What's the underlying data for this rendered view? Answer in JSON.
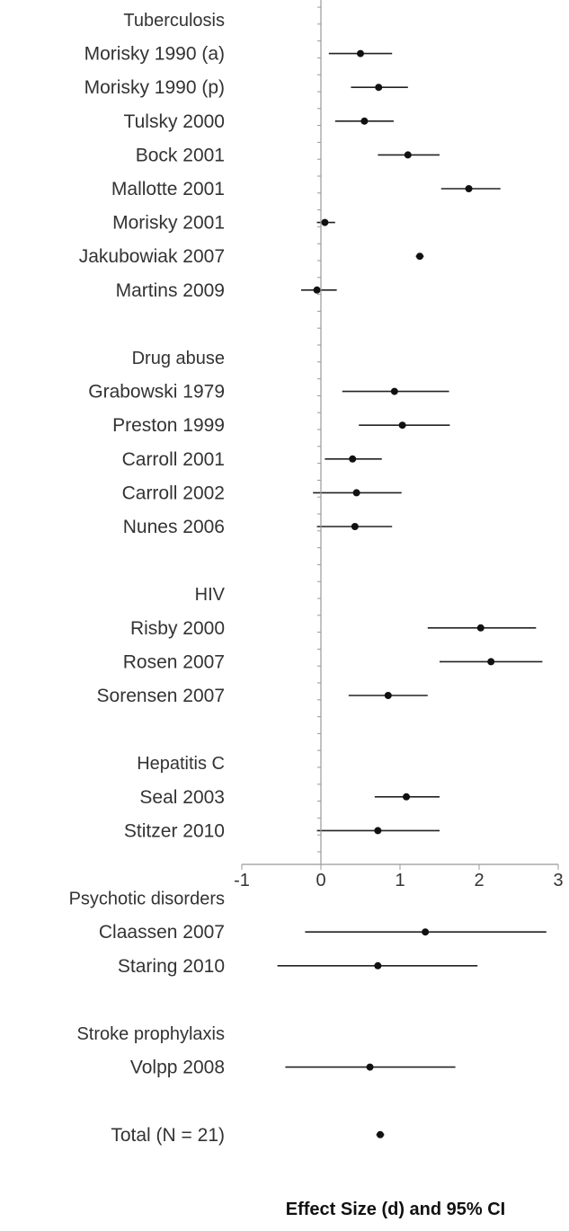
{
  "chart_data": {
    "type": "forest",
    "xlabel": "Effect Size (d) and 95% CI",
    "xlim": [
      -1,
      3
    ],
    "xticks": [
      "-1",
      "0",
      "1",
      "2",
      "3"
    ],
    "colors": {
      "marker": "#111111",
      "line": "#222222",
      "axis": "#999999",
      "text": "#333333"
    },
    "groups": [
      {
        "name": "Tuberculosis",
        "studies": [
          {
            "label": "Morisky 1990 (a)",
            "d": 0.5,
            "lo": 0.1,
            "hi": 0.9
          },
          {
            "label": "Morisky 1990 (p)",
            "d": 0.73,
            "lo": 0.38,
            "hi": 1.1
          },
          {
            "label": "Tulsky 2000",
            "d": 0.55,
            "lo": 0.18,
            "hi": 0.92
          },
          {
            "label": "Bock 2001",
            "d": 1.1,
            "lo": 0.72,
            "hi": 1.5
          },
          {
            "label": "Mallotte 2001",
            "d": 1.87,
            "lo": 1.52,
            "hi": 2.27
          },
          {
            "label": "Morisky 2001",
            "d": 0.05,
            "lo": -0.05,
            "hi": 0.18
          },
          {
            "label": "Jakubowiak 2007",
            "d": 1.25,
            "lo": 1.2,
            "hi": 1.3
          },
          {
            "label": "Martins 2009",
            "d": -0.05,
            "lo": -0.25,
            "hi": 0.2
          }
        ]
      },
      {
        "name": "Drug abuse",
        "studies": [
          {
            "label": "Grabowski 1979",
            "d": 0.93,
            "lo": 0.27,
            "hi": 1.62
          },
          {
            "label": "Preston 1999",
            "d": 1.03,
            "lo": 0.48,
            "hi": 1.63
          },
          {
            "label": "Carroll 2001",
            "d": 0.4,
            "lo": 0.05,
            "hi": 0.77
          },
          {
            "label": "Carroll 2002",
            "d": 0.45,
            "lo": -0.1,
            "hi": 1.02
          },
          {
            "label": "Nunes 2006",
            "d": 0.43,
            "lo": -0.05,
            "hi": 0.9
          }
        ]
      },
      {
        "name": "HIV",
        "studies": [
          {
            "label": "Risby 2000",
            "d": 2.02,
            "lo": 1.35,
            "hi": 2.72
          },
          {
            "label": "Rosen 2007",
            "d": 2.15,
            "lo": 1.5,
            "hi": 2.8
          },
          {
            "label": "Sorensen 2007",
            "d": 0.85,
            "lo": 0.35,
            "hi": 1.35
          }
        ]
      },
      {
        "name": "Hepatitis C",
        "studies": [
          {
            "label": "Seal 2003",
            "d": 1.08,
            "lo": 0.68,
            "hi": 1.5
          },
          {
            "label": "Stitzer 2010",
            "d": 0.72,
            "lo": -0.05,
            "hi": 1.5
          }
        ]
      },
      {
        "name": "Psychotic disorders",
        "studies": [
          {
            "label": "Claassen 2007",
            "d": 1.32,
            "lo": -0.2,
            "hi": 2.85
          },
          {
            "label": "Staring 2010",
            "d": 0.72,
            "lo": -0.55,
            "hi": 1.98
          }
        ]
      },
      {
        "name": "Stroke prophylaxis",
        "studies": [
          {
            "label": "Volpp 2008",
            "d": 0.62,
            "lo": -0.45,
            "hi": 1.7
          }
        ]
      }
    ],
    "total": {
      "label": "Total (N = 21)",
      "d": 0.75,
      "lo": 0.7,
      "hi": 0.8
    }
  }
}
